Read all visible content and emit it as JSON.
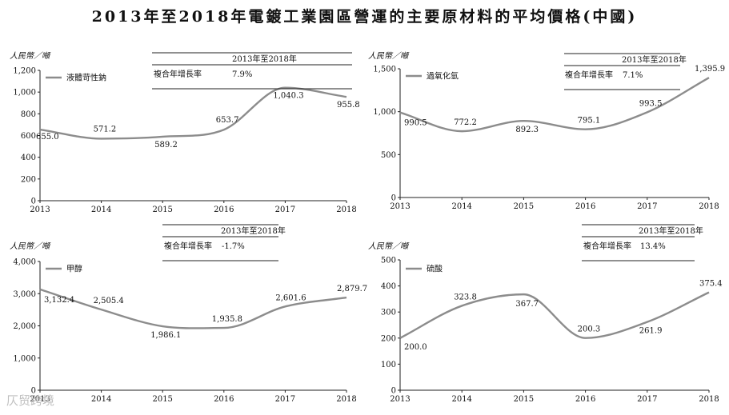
{
  "title": "2013年至2018年電鍍工業園區營運的主要原材料的平均價格(中國)",
  "watermark": "仄贸跨境",
  "colors": {
    "line": "#8c8c8c",
    "axis": "#222222",
    "text": "#111111"
  },
  "cagr_header": "2013年至2018年",
  "cagr_label": "複合年增長率",
  "chart_data": [
    {
      "type": "line",
      "unit_label": "人民幣／噸",
      "legend": "液體苛性鈉",
      "cagr": "7.9%",
      "x": [
        "2013",
        "2014",
        "2015",
        "2016",
        "2017",
        "2018"
      ],
      "values": [
        655.0,
        571.2,
        589.2,
        653.7,
        1040.3,
        955.8
      ],
      "value_labels": [
        "655.0",
        "571.2",
        "589.2",
        "653.7",
        "1,040.3",
        "955.8"
      ],
      "ylim": [
        0,
        1200
      ],
      "yticks": [
        0,
        200,
        400,
        600,
        800,
        1000,
        1200
      ],
      "ytick_labels": [
        "0",
        "200",
        "400",
        "600",
        "800",
        "1,000",
        "1,200"
      ]
    },
    {
      "type": "line",
      "unit_label": "人民幣／噸",
      "legend": "過氧化氫",
      "cagr": "7.1%",
      "x": [
        "2013",
        "2014",
        "2015",
        "2016",
        "2017",
        "2018"
      ],
      "values": [
        990.5,
        772.2,
        892.3,
        795.1,
        993.5,
        1395.9
      ],
      "value_labels": [
        "990.5",
        "772.2",
        "892.3",
        "795.1",
        "993.5",
        "1,395.9"
      ],
      "ylim": [
        0,
        1500
      ],
      "yticks": [
        0,
        500,
        1000,
        1500
      ],
      "ytick_labels": [
        "0",
        "500",
        "1,000",
        "1,500"
      ]
    },
    {
      "type": "line",
      "unit_label": "人民幣／噸",
      "legend": "甲醇",
      "cagr": "-1.7%",
      "x": [
        "2013",
        "2014",
        "2015",
        "2016",
        "2017",
        "2018"
      ],
      "values": [
        3132.4,
        2505.4,
        1986.1,
        1935.8,
        2601.6,
        2879.7
      ],
      "value_labels": [
        "3,132.4",
        "2,505.4",
        "1,986.1",
        "1,935.8",
        "2,601.6",
        "2,879.7"
      ],
      "ylim": [
        0,
        4000
      ],
      "yticks": [
        0,
        1000,
        2000,
        3000,
        4000
      ],
      "ytick_labels": [
        "0",
        "1,000",
        "2,000",
        "3,000",
        "4,000"
      ]
    },
    {
      "type": "line",
      "unit_label": "人民幣／噸",
      "legend": "硫酸",
      "cagr": "13.4%",
      "x": [
        "2013",
        "2014",
        "2015",
        "2016",
        "2017",
        "2018"
      ],
      "values": [
        200.0,
        323.8,
        367.7,
        200.3,
        261.9,
        375.4
      ],
      "value_labels": [
        "200.0",
        "323.8",
        "367.7",
        "200.3",
        "261.9",
        "375.4"
      ],
      "ylim": [
        0,
        500
      ],
      "yticks": [
        0,
        100,
        200,
        300,
        400,
        500
      ],
      "ytick_labels": [
        "0",
        "100",
        "200",
        "300",
        "400",
        "500"
      ]
    }
  ]
}
